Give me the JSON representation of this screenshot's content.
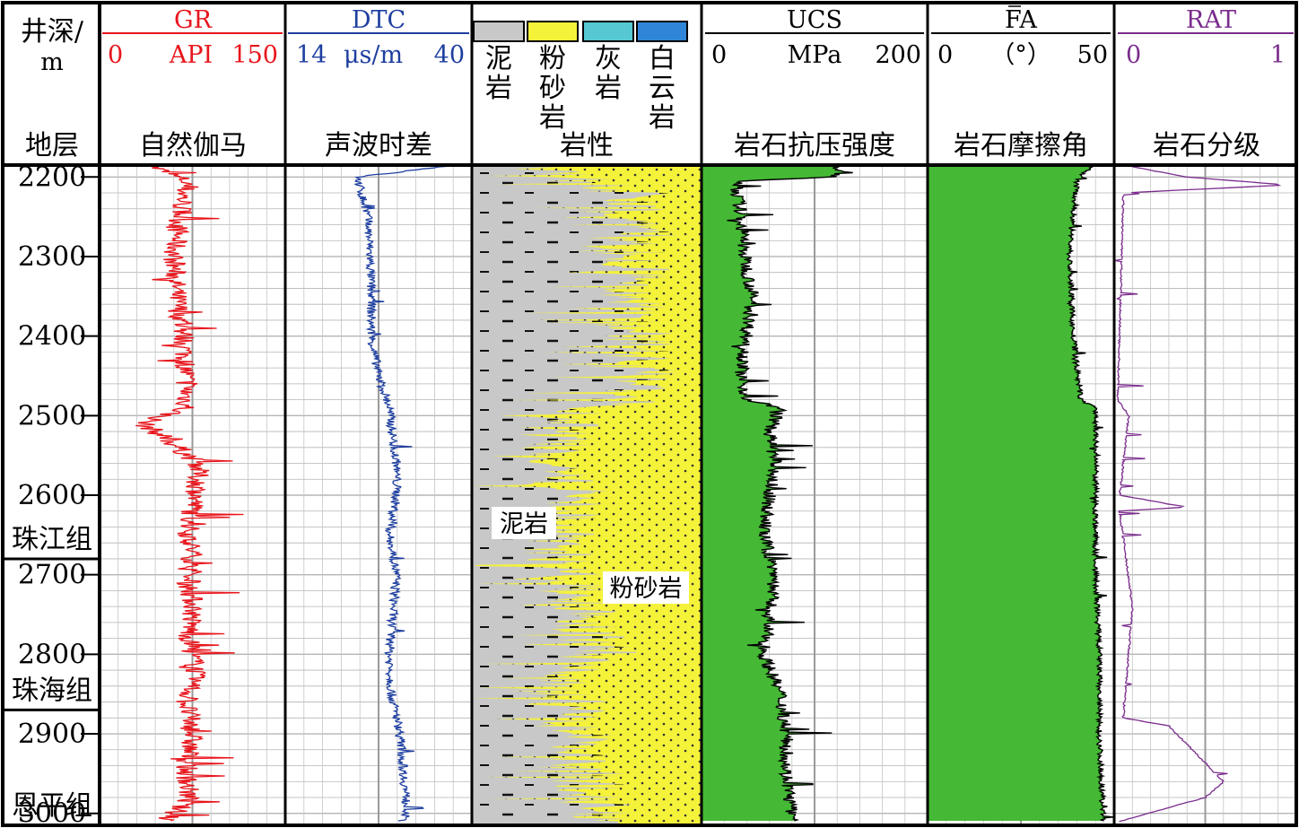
{
  "depth_header": {
    "title": "井深/",
    "unit": "m",
    "formation_label": "地层"
  },
  "tracks": {
    "gr": {
      "mnemonic": "GR",
      "min": "0",
      "unit": "API",
      "max": "150",
      "name": "自然伽马",
      "color": "#e8151c"
    },
    "dtc": {
      "mnemonic": "DTC",
      "min": "14",
      "unit": "μs/m",
      "max": "40",
      "name": "声波时差",
      "color": "#1e3fa0"
    },
    "lith": {
      "name": "岩性",
      "legend": [
        {
          "label": "泥岩",
          "chars": [
            "泥",
            "岩"
          ],
          "color": "#c8c8c8"
        },
        {
          "label": "粉砂岩",
          "chars": [
            "粉",
            "砂",
            "岩"
          ],
          "color": "#f5f23a"
        },
        {
          "label": "灰岩",
          "chars": [
            "灰",
            "岩"
          ],
          "color": "#55c8d2"
        },
        {
          "label": "白云岩",
          "chars": [
            "白",
            "云",
            "岩"
          ],
          "color": "#2f86d8"
        }
      ],
      "annotations": [
        "泥岩",
        "粉砂岩"
      ]
    },
    "ucs": {
      "mnemonic": "UCS",
      "min": "0",
      "unit": "MPa",
      "max": "200",
      "name": "岩石抗压强度",
      "color": "#45b935"
    },
    "fa": {
      "mnemonic": "FA",
      "min": "0",
      "unit": "（°）",
      "max": "50",
      "name": "岩石摩擦角",
      "color": "#45b935"
    },
    "rat": {
      "mnemonic": "RAT",
      "min": "0",
      "max": "1",
      "name": "岩石分级",
      "color": "#7a2c8c"
    }
  },
  "formations": [
    {
      "name": "珠江组",
      "top": 2180,
      "bottom": 2680
    },
    {
      "name": "珠海组",
      "top": 2680,
      "bottom": 2870
    },
    {
      "name": "恩平组",
      "top": 2870,
      "bottom": 3015
    }
  ],
  "chart_data": {
    "type": "line",
    "title": "",
    "y_axis": {
      "label": "井深/m",
      "range": [
        2185,
        3015
      ],
      "reversed": true,
      "ticks": [
        2200,
        2300,
        2400,
        2500,
        2600,
        2700,
        2800,
        2900,
        3000
      ]
    },
    "series": [
      {
        "name": "GR",
        "unit": "API",
        "range": [
          0,
          150
        ],
        "color": "#e8151c",
        "depth": [
          2185,
          2205,
          2250,
          2300,
          2350,
          2400,
          2450,
          2490,
          2510,
          2530,
          2560,
          2600,
          2640,
          2680,
          2700,
          2740,
          2780,
          2820,
          2860,
          2900,
          2940,
          2980,
          3010
        ],
        "values": [
          40,
          70,
          65,
          60,
          62,
          68,
          70,
          70,
          35,
          55,
          80,
          78,
          72,
          75,
          70,
          76,
          72,
          78,
          70,
          75,
          70,
          72,
          55
        ]
      },
      {
        "name": "DTC",
        "unit": "μs/m",
        "range": [
          14,
          40
        ],
        "color": "#1e3fa0",
        "depth": [
          2185,
          2200,
          2250,
          2300,
          2350,
          2400,
          2450,
          2490,
          2530,
          2560,
          2600,
          2650,
          2700,
          2750,
          2800,
          2850,
          2900,
          2950,
          3000,
          3010
        ],
        "values": [
          38,
          24,
          25.5,
          25.8,
          26,
          26,
          27,
          28.5,
          29,
          29.5,
          29.5,
          28.5,
          29.5,
          29,
          28.5,
          28.8,
          30,
          30.5,
          31,
          30
        ]
      },
      {
        "name": "UCS",
        "unit": "MPa",
        "range": [
          0,
          200
        ],
        "color": "#45b935",
        "depth": [
          2185,
          2200,
          2205,
          2250,
          2300,
          2350,
          2400,
          2450,
          2480,
          2490,
          2520,
          2560,
          2600,
          2650,
          2700,
          2750,
          2800,
          2850,
          2900,
          2950,
          3000,
          3010
        ],
        "values": [
          120,
          120,
          30,
          35,
          38,
          45,
          40,
          35,
          40,
          70,
          60,
          65,
          60,
          55,
          65,
          60,
          55,
          70,
          75,
          75,
          80,
          80
        ]
      },
      {
        "name": "FA",
        "unit": "°",
        "range": [
          0,
          50
        ],
        "color": "#45b935",
        "depth": [
          2185,
          2205,
          2250,
          2300,
          2400,
          2480,
          2490,
          2550,
          2600,
          2700,
          2800,
          2900,
          3000,
          3010
        ],
        "values": [
          44,
          40,
          39,
          38,
          39,
          41,
          45,
          45,
          45,
          45,
          46,
          46,
          47,
          47
        ]
      },
      {
        "name": "RAT",
        "unit": "",
        "range": [
          0,
          1
        ],
        "color": "#7a2c8c",
        "depth": [
          2185,
          2200,
          2210,
          2220,
          2480,
          2500,
          2600,
          2615,
          2620,
          2740,
          2880,
          2890,
          2960,
          2980,
          3010
        ],
        "values": [
          0.05,
          0.4,
          0.95,
          0.05,
          0.02,
          0.08,
          0.03,
          0.4,
          0.03,
          0.1,
          0.05,
          0.3,
          0.6,
          0.5,
          0.03
        ]
      }
    ],
    "lithology_sand_fraction": {
      "depth": [
        2185,
        2220,
        2250,
        2300,
        2350,
        2400,
        2450,
        2480,
        2500,
        2520,
        2560,
        2600,
        2640,
        2680,
        2720,
        2760,
        2800,
        2850,
        2900,
        2950,
        3000,
        3015
      ],
      "values": [
        0.8,
        0.3,
        0.25,
        0.3,
        0.32,
        0.3,
        0.25,
        0.35,
        0.55,
        0.65,
        0.6,
        0.55,
        0.65,
        0.6,
        0.55,
        0.5,
        0.45,
        0.6,
        0.55,
        0.5,
        0.45,
        0.4
      ]
    }
  }
}
